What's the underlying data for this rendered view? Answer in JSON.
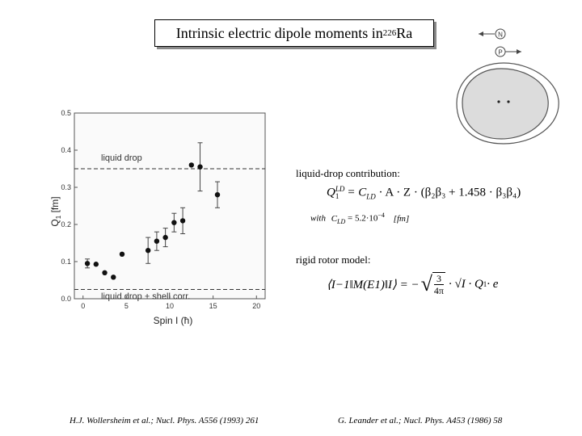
{
  "slide": {
    "title_text": "Intrinsic electric dipole moments in ",
    "title_sup": "226",
    "title_tail": "Ra"
  },
  "chart_data": {
    "type": "scatter",
    "xlabel_prefix": "Spin I (",
    "xlabel_unit": "ħ",
    "xlabel_suffix": ")",
    "ylabel": "Q",
    "ylabel_sub": "1",
    "ylabel_unit": " [fm]",
    "xlim": [
      -1,
      21
    ],
    "ylim": [
      0,
      0.5
    ],
    "xticks": [
      "0",
      "5",
      "10",
      "15",
      "20"
    ],
    "yticks": [
      "0.0",
      "0.1",
      "0.2",
      "0.3",
      "0.4",
      "0.5"
    ],
    "reference_lines": [
      {
        "label": "liquid drop",
        "y": 0.35
      },
      {
        "label": "liquid drop + shell corr.",
        "y": 0.025
      }
    ],
    "points": [
      {
        "x": 0.5,
        "y": 0.095,
        "err": 0.012
      },
      {
        "x": 1.5,
        "y": 0.093,
        "err": 0.0
      },
      {
        "x": 2.5,
        "y": 0.07,
        "err": 0.0
      },
      {
        "x": 3.5,
        "y": 0.058,
        "err": 0.0
      },
      {
        "x": 4.5,
        "y": 0.12,
        "err": 0.0
      },
      {
        "x": 7.5,
        "y": 0.13,
        "err": 0.035
      },
      {
        "x": 8.5,
        "y": 0.155,
        "err": 0.025
      },
      {
        "x": 9.5,
        "y": 0.165,
        "err": 0.025
      },
      {
        "x": 10.5,
        "y": 0.205,
        "err": 0.025
      },
      {
        "x": 11.5,
        "y": 0.21,
        "err": 0.035
      },
      {
        "x": 12.5,
        "y": 0.36,
        "err": 0.0
      },
      {
        "x": 13.5,
        "y": 0.355,
        "err": 0.065
      },
      {
        "x": 15.5,
        "y": 0.28,
        "err": 0.035
      }
    ]
  },
  "diagram": {
    "arrow_N_label": "N",
    "arrow_P_label": "P"
  },
  "formulas": {
    "ld_heading": "liquid-drop contribution:",
    "ld_lhs": "Q",
    "ld_lhs_sub": "1",
    "ld_lhs_sup": "LD",
    "ld_rhs": "= C",
    "ld_rhs_sub": "LD",
    "ld_rhs_tail": " · A · Z · (β₂β₃ + 1.458 · β₃β₄)",
    "with_text": "with",
    "with_c": "C",
    "with_c_sub": "LD",
    "with_value": "= 5.2·10",
    "with_exp": "−4",
    "with_unit": "[fm]",
    "rr_heading": "rigid rotor model:",
    "rr_lhs": "⟨I−1‖M(E1)‖I⟩ = −",
    "rr_frac_num": "3",
    "rr_frac_den": "4π",
    "rr_tail": "· √I · Q",
    "rr_tail_sub": "1",
    "rr_e": " · e"
  },
  "references": {
    "left": "H.J. Wollersheim et al.; Nucl. Phys. A556 (1993) 261",
    "right": "G. Leander et al.; Nucl. Phys. A453 (1986) 58"
  }
}
